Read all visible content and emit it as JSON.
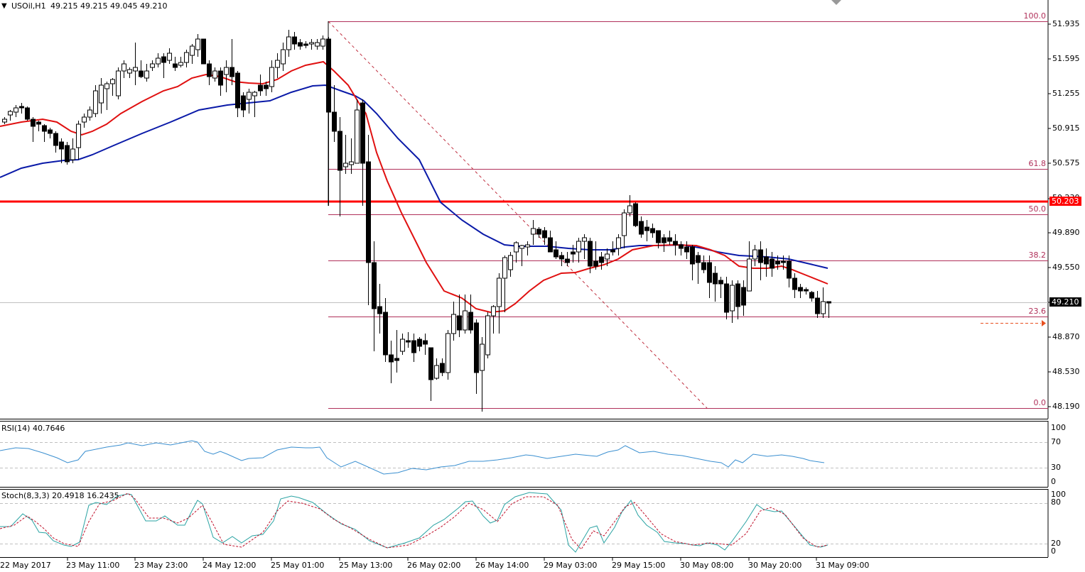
{
  "header": {
    "symbol": "USOil,H1",
    "ohlc": "49.215 49.215 49.045 49.210",
    "menu_arrow": "▼"
  },
  "price_axis": {
    "ticks": [
      "51.935",
      "51.595",
      "51.255",
      "50.915",
      "50.575",
      "50.230",
      "49.890",
      "49.550",
      "49.210",
      "48.870",
      "48.530",
      "48.190"
    ],
    "current_price": "49.210",
    "hline_price": "50.203"
  },
  "fibonacci": {
    "levels": [
      {
        "label": "100.0",
        "price": 51.96
      },
      {
        "label": "61.8",
        "price": 50.53
      },
      {
        "label": "50.0",
        "price": 50.08
      },
      {
        "label": "38.2",
        "price": 49.63
      },
      {
        "label": "23.6",
        "price": 49.08
      },
      {
        "label": "0.0",
        "price": 48.19
      }
    ]
  },
  "rsi": {
    "title": "RSI(14) 40.7646",
    "levels": [
      "100",
      "70",
      "30",
      "0"
    ]
  },
  "stoch": {
    "title": "Stoch(8,3,3) 20.4918 16.2435",
    "levels": [
      "100",
      "80",
      "20",
      "0"
    ]
  },
  "time_axis": {
    "labels": [
      "22 May 2017",
      "23 May 11:00",
      "23 May 23:00",
      "24 May 12:00",
      "25 May 01:00",
      "25 May 13:00",
      "26 May 02:00",
      "26 May 14:00",
      "29 May 03:00",
      "29 May 15:00",
      "30 May 08:00",
      "30 May 20:00",
      "31 May 09:00"
    ]
  },
  "colors": {
    "ma_fast": "#e01010",
    "ma_slow": "#0a1aa8",
    "hline": "#ff0000",
    "fib": "#b0305a",
    "rsi_line": "#3a8fd0",
    "stoch_main": "#2aa3a3",
    "stoch_signal": "#c0102a",
    "current_price_bg": "#000000",
    "hline_tag_bg": "#ff0000"
  },
  "chart_data": {
    "type": "candlestick",
    "title": "USOil,H1",
    "subtitle": "49.215 49.215 49.045 49.210",
    "xlabel": "",
    "ylabel": "",
    "ylim": [
      48.05,
      52.15
    ],
    "x_ticks": [
      "22 May 2017",
      "23 May 11:00",
      "23 May 23:00",
      "24 May 12:00",
      "25 May 01:00",
      "25 May 13:00",
      "26 May 02:00",
      "26 May 14:00",
      "29 May 03:00",
      "29 May 15:00",
      "30 May 08:00",
      "30 May 20:00",
      "31 May 09:00"
    ],
    "y_ticks": [
      51.935,
      51.595,
      51.255,
      50.915,
      50.575,
      50.23,
      49.89,
      49.55,
      49.21,
      48.87,
      48.53,
      48.19
    ],
    "last_ohlc": {
      "open": 49.215,
      "high": 49.215,
      "low": 49.045,
      "close": 49.21
    },
    "horizontal_line": 50.203,
    "fibonacci_retracement": {
      "high": 51.96,
      "low": 48.19,
      "levels": {
        "100.0": 51.96,
        "61.8": 50.53,
        "50.0": 50.08,
        "38.2": 49.63,
        "23.6": 49.08,
        "0.0": 48.19
      }
    },
    "series": [
      {
        "name": "MA fast (red)",
        "approx_path": [
          [
            0,
            50.9
          ],
          [
            100,
            51.0
          ],
          [
            130,
            50.88
          ],
          [
            300,
            51.5
          ],
          [
            460,
            51.62
          ],
          [
            510,
            51.25
          ],
          [
            620,
            49.35
          ],
          [
            700,
            49.1
          ],
          [
            800,
            49.55
          ],
          [
            900,
            49.8
          ],
          [
            1000,
            49.78
          ],
          [
            1100,
            49.58
          ],
          [
            1165,
            49.4
          ]
        ]
      },
      {
        "name": "MA slow (blue)",
        "approx_path": [
          [
            0,
            50.5
          ],
          [
            100,
            50.72
          ],
          [
            300,
            51.2
          ],
          [
            460,
            51.35
          ],
          [
            510,
            51.25
          ],
          [
            620,
            50.3
          ],
          [
            720,
            49.78
          ],
          [
            860,
            49.76
          ],
          [
            1000,
            49.78
          ],
          [
            1100,
            49.68
          ],
          [
            1165,
            49.55
          ]
        ]
      },
      {
        "name": "RSI(14)",
        "last": 40.7646,
        "range": [
          0,
          100
        ],
        "levels": [
          30,
          70
        ]
      },
      {
        "name": "Stoch %K",
        "last": 20.4918,
        "range": [
          0,
          100
        ],
        "levels": [
          20,
          80
        ]
      },
      {
        "name": "Stoch %D",
        "last": 16.2435,
        "range": [
          0,
          100
        ],
        "levels": [
          20,
          80
        ]
      }
    ],
    "grid": false,
    "legend_position": "top-left"
  }
}
